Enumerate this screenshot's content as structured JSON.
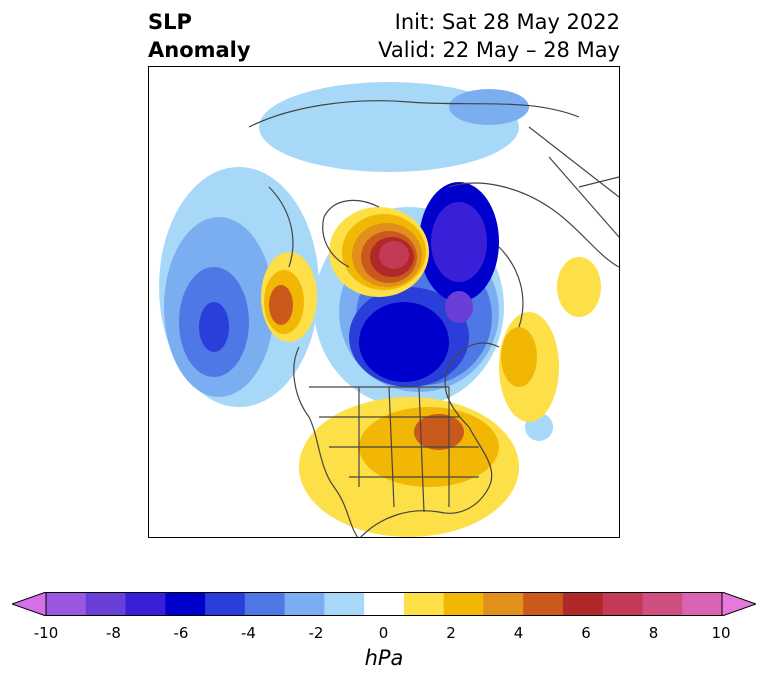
{
  "title": {
    "left_line1": "SLP",
    "left_line2": "Anomaly",
    "init": "Init: Sat 28 May 2022",
    "valid": "Valid: 22 May – 28 May"
  },
  "colorbar": {
    "unit": "hPa",
    "ticks": [
      "-10",
      "-8",
      "-6",
      "-4",
      "-2",
      "0",
      "2",
      "4",
      "6",
      "8",
      "10"
    ],
    "colors": [
      "#d670e8",
      "#9b57e0",
      "#6a3fd8",
      "#3a1fd8",
      "#0000cc",
      "#2a3fd9",
      "#4d78e6",
      "#7aaef0",
      "#a8d8f8",
      "#ffffff",
      "#fde047",
      "#f2b705",
      "#e0901b",
      "#c95a1c",
      "#b0282a",
      "#c23a55",
      "#cf4f80",
      "#db63b5",
      "#e879dc"
    ]
  },
  "map": {
    "projection": "north-polar-stereographic",
    "variable": "sea-level-pressure-anomaly"
  }
}
